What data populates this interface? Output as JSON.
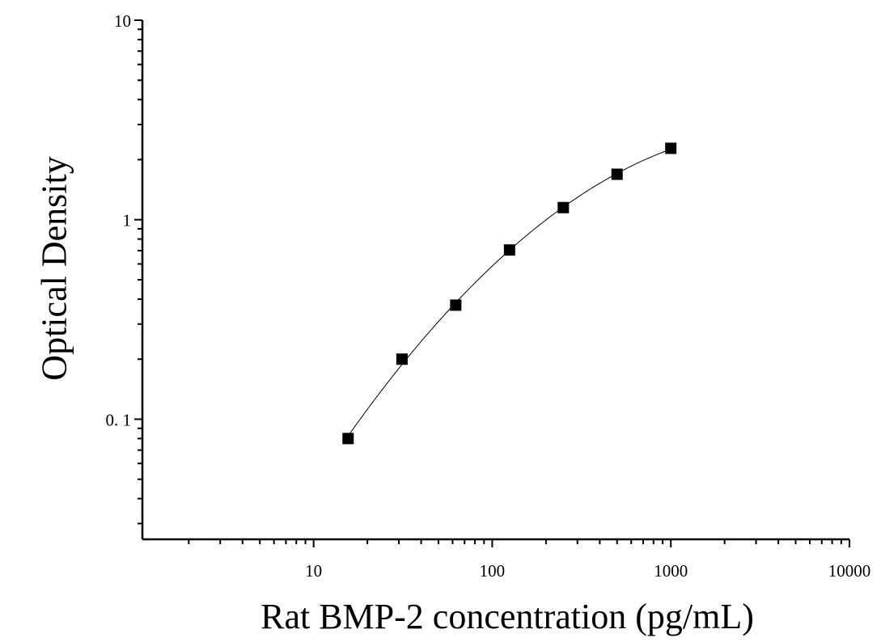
{
  "chart_data": {
    "type": "scatter",
    "xlabel": "Rat BMP-2 concentration (pg/mL)",
    "ylabel": "Optical Density",
    "x_scale": "log",
    "y_scale": "log",
    "xlim": [
      1.1,
      10000
    ],
    "ylim": [
      0.025,
      10
    ],
    "x_tick_labels": [
      "10",
      "100",
      "1000",
      "10000"
    ],
    "y_tick_labels": [
      "10",
      "1",
      "0. 1"
    ],
    "grid": false,
    "legend": "none",
    "series": [
      {
        "x": [
          15.6,
          31.25,
          62.5,
          125,
          250,
          500,
          1000
        ],
        "y": [
          0.08,
          0.2,
          0.373,
          0.705,
          1.15,
          1.69,
          2.28
        ],
        "marker": "square",
        "fit_curve": true
      }
    ],
    "colors": {
      "marker": "#000000",
      "line": "#000000",
      "axis": "#000000"
    }
  }
}
